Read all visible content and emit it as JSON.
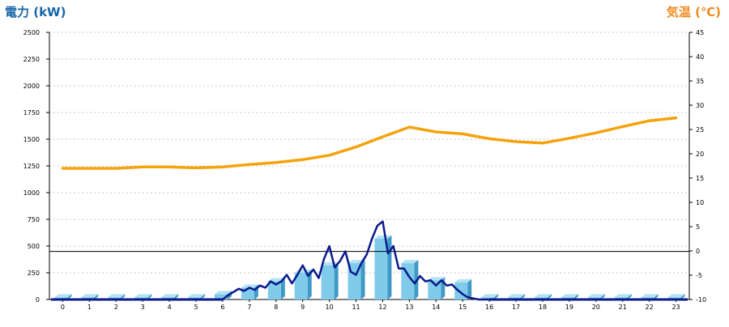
{
  "chart_data": {
    "type": "bar+line",
    "left_axis_label": "電力 (kW)",
    "right_axis_label": "気温 (℃)",
    "left_ylim": [
      0,
      2500
    ],
    "left_ticks": [
      "0",
      "250",
      "500",
      "750",
      "1000",
      "1250",
      "1500",
      "1750",
      "2000",
      "2250",
      "2500"
    ],
    "right_ylim": [
      -10,
      45
    ],
    "right_ticks": [
      "-10",
      "-5",
      "0",
      "5",
      "10",
      "15",
      "20",
      "25",
      "30",
      "35",
      "40",
      "45"
    ],
    "categories": [
      "0",
      "1",
      "2",
      "3",
      "4",
      "5",
      "6",
      "7",
      "8",
      "9",
      "10",
      "11",
      "12",
      "13",
      "14",
      "15",
      "16",
      "17",
      "18",
      "19",
      "20",
      "21",
      "22",
      "23"
    ],
    "grid": true,
    "bar_values": [
      20,
      20,
      20,
      20,
      20,
      20,
      50,
      110,
      170,
      250,
      320,
      340,
      570,
      340,
      180,
      160,
      20,
      20,
      20,
      20,
      20,
      20,
      20,
      20
    ],
    "power_line": {
      "x": [
        6,
        6.2,
        6.4,
        6.6,
        6.8,
        7,
        7.2,
        7.4,
        7.6,
        7.8,
        8,
        8.2,
        8.4,
        8.6,
        8.8,
        9,
        9.2,
        9.4,
        9.6,
        9.8,
        10,
        10.2,
        10.4,
        10.6,
        10.8,
        11,
        11.2,
        11.4,
        11.6,
        11.8,
        12,
        12.2,
        12.4,
        12.6,
        12.8,
        13,
        13.2,
        13.4,
        13.6,
        13.8,
        14,
        14.2,
        14.4,
        14.6,
        14.8,
        15,
        15.2,
        15.4,
        15.6,
        15.8,
        16
      ],
      "y": [
        0,
        40,
        70,
        100,
        80,
        110,
        90,
        130,
        110,
        170,
        140,
        170,
        230,
        150,
        230,
        320,
        220,
        280,
        200,
        380,
        500,
        300,
        360,
        450,
        260,
        230,
        340,
        420,
        570,
        690,
        730,
        430,
        500,
        290,
        290,
        210,
        150,
        220,
        170,
        180,
        130,
        180,
        130,
        140,
        90,
        50,
        20,
        10,
        0,
        0,
        0
      ]
    },
    "temperature_line": {
      "x": [
        0,
        1,
        2,
        3,
        4,
        5,
        6,
        7,
        8,
        9,
        10,
        11,
        12,
        13,
        14,
        15,
        16,
        17,
        18,
        19,
        20,
        21,
        22,
        23
      ],
      "y": [
        17,
        17,
        17,
        17.3,
        17.3,
        17.1,
        17.3,
        17.8,
        18.2,
        18.8,
        19.7,
        21.4,
        23.5,
        25.5,
        24.5,
        24.1,
        23.1,
        22.5,
        22.2,
        23.2,
        24.3,
        25.6,
        26.8,
        27.4
      ]
    },
    "reference_line_left_value": 450,
    "colors": {
      "bar_front": "#7fcbe9",
      "bar_side": "#3e99c5",
      "bar_top": "#b5e3f5",
      "power": "#0a1a8a",
      "temperature": "#f5a20b",
      "left_label": "#1566a8",
      "right_label": "#f08a1c"
    }
  }
}
